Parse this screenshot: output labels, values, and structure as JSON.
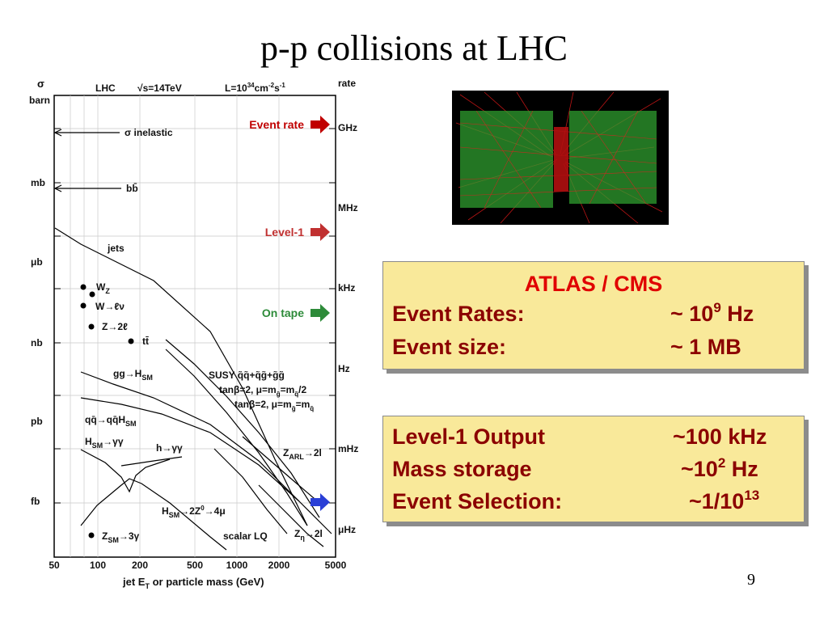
{
  "slide": {
    "title": "p-p collisions at LHC",
    "page_number": "9"
  },
  "figure": {
    "sigma_label": "σ",
    "barn_label": "barn",
    "header_lhc": "LHC",
    "header_energy": "√s=14TeV",
    "header_lumi": "L=10",
    "header_lumi_exp": "34",
    "header_lumi_unit": "cm",
    "header_lumi_unit_exp": "-2",
    "header_lumi_s": "s",
    "header_lumi_s_exp": "-1",
    "rate_label": "rate",
    "left_axis": [
      "mb",
      "μb",
      "nb",
      "pb",
      "fb"
    ],
    "right_axis": [
      "GHz",
      "MHz",
      "kHz",
      "Hz",
      "mHz",
      "μHz"
    ],
    "x_ticks": [
      "50",
      "100",
      "200",
      "500",
      "1000",
      "2000",
      "5000"
    ],
    "xlabel": "jet E",
    "xlabel_sub": "T",
    "xlabel_rest": " or particle mass (GeV)",
    "curve_labels": {
      "sigma_inelastic": "σ inelastic",
      "bbbar": "bb̄",
      "jets": "jets",
      "wz": "W",
      "wz_sub": "Z",
      "w_lnu": "W→ℓν",
      "z_2l": "Z→2ℓ",
      "ttbar": "tt̄",
      "gg_h": "gg→H",
      "gg_h_sub": "SM",
      "susy": "SUSY q̃q̃+q̃g̃+g̃g̃",
      "tanb1": "tanβ=2, μ=m",
      "tanb1_rest": "=m",
      "tanb1_end": "/2",
      "tanb2": "tanβ=2, μ=m",
      "tanb2_rest": "=m",
      "qq_qqh": "qq̄→qq̄H",
      "qq_qqh_sub": "SM",
      "h_sm_gg": "H",
      "h_sm_gg_sub": "SM",
      "h_sm_gg_rest": "→γγ",
      "h_gg": "h→γγ",
      "z_arl": "Z",
      "z_arl_sub": "ARL",
      "z_arl_rest": "→2l",
      "h_4mu": "H",
      "h_4mu_sub": "SM",
      "h_4mu_rest": "→2Z",
      "h_4mu_exp": "0",
      "h_4mu_end": "→4μ",
      "z_3g": "Z",
      "z_3g_sub": "SM",
      "z_3g_rest": "→3γ",
      "scalar_lq": "scalar LQ",
      "z_eta": "Z",
      "z_eta_sub": "η",
      "z_eta_rest": "→2l"
    },
    "rate_markers": [
      {
        "label": "Event rate",
        "color": "#c00000"
      },
      {
        "label": "Level-1",
        "color": "#c03030"
      },
      {
        "label": "On tape",
        "color": "#2e8b3a"
      },
      {
        "label": "",
        "color": "#2a3fd6"
      }
    ]
  },
  "box1": {
    "heading": "ATLAS / CMS",
    "rows": [
      {
        "label": "Event Rates:",
        "value": "~ 10",
        "sup": "9",
        "unit": " Hz"
      },
      {
        "label": "Event size:",
        "value": "~ 1 MB",
        "sup": "",
        "unit": ""
      }
    ]
  },
  "box2": {
    "rows": [
      {
        "label": "Level-1 Output",
        "value": "~100 kHz",
        "sup": "",
        "unit": ""
      },
      {
        "label": "Mass storage",
        "value": "~10",
        "sup": "2",
        "unit": " Hz"
      },
      {
        "label": "Event Selection:",
        "value": "~1/10",
        "sup": "13",
        "unit": ""
      }
    ]
  },
  "colors": {
    "heading_red": "#e00000",
    "text_darkred": "#8b0000",
    "box_fill": "#f9e99a"
  }
}
